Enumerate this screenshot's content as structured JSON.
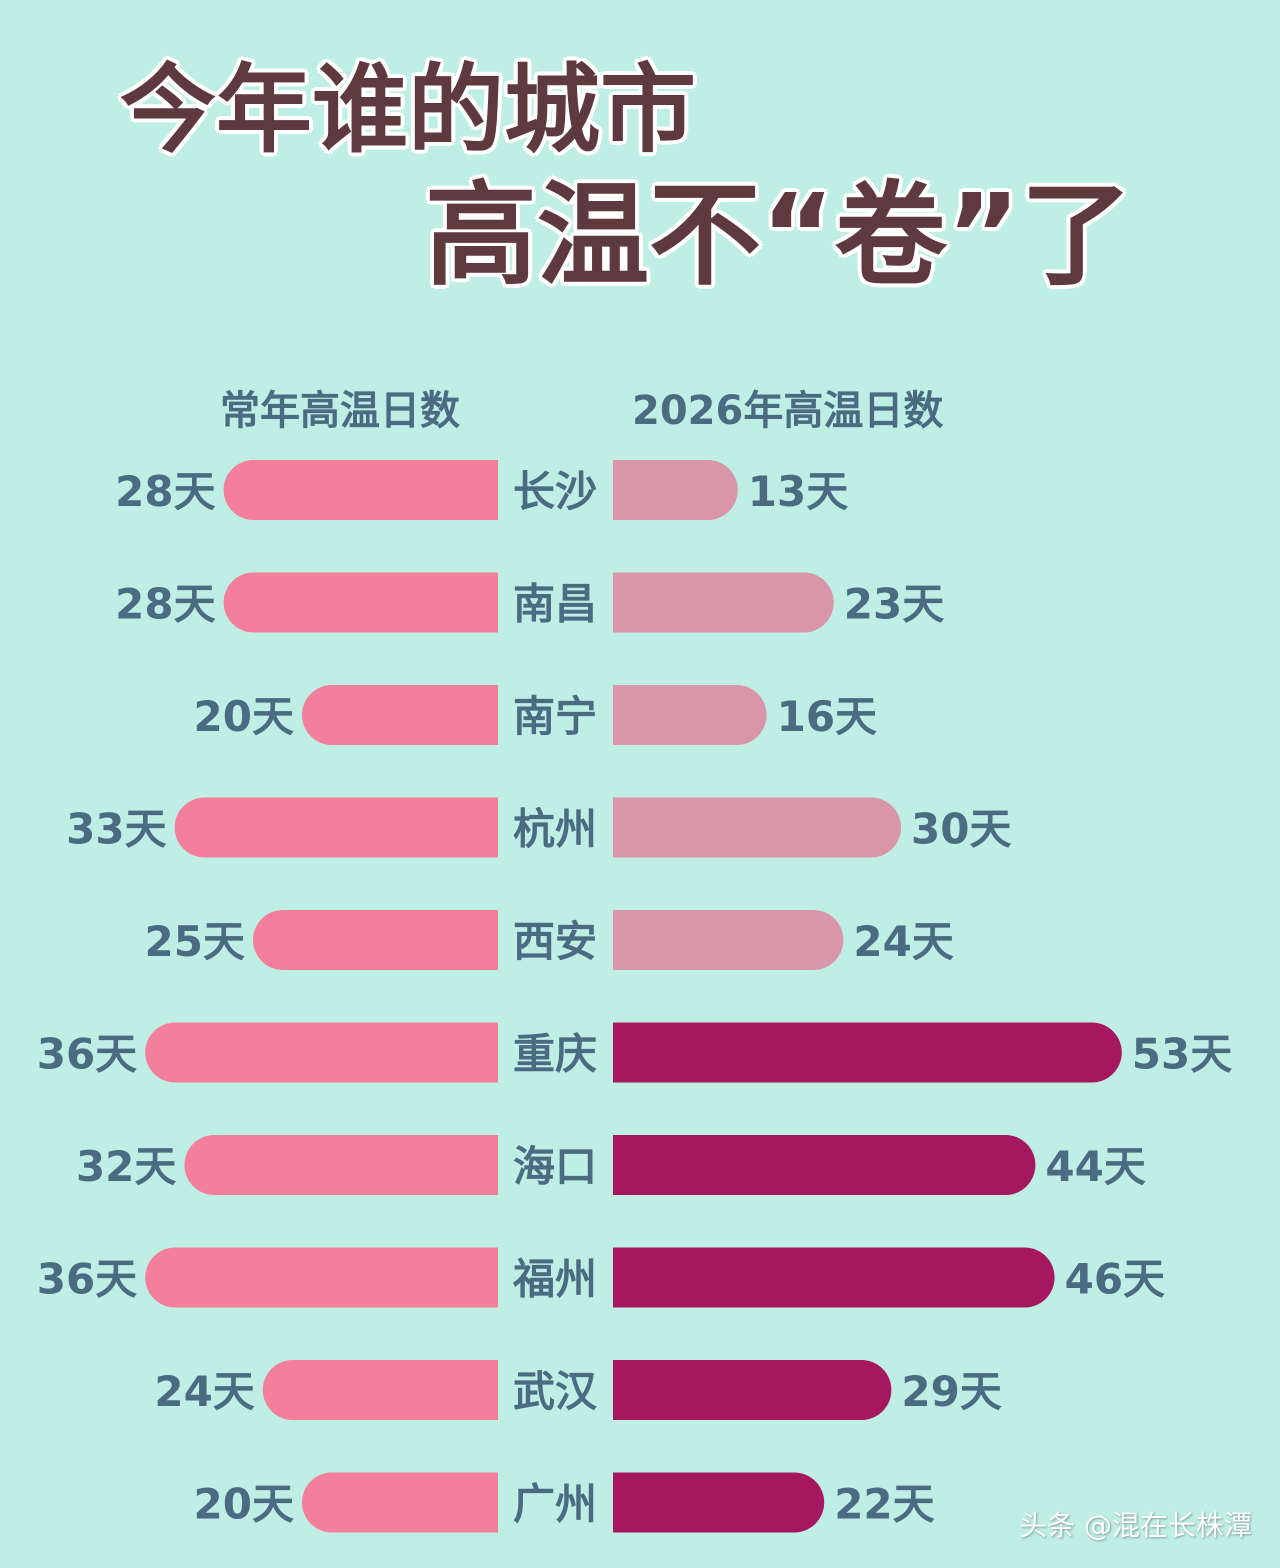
{
  "title": {
    "line1": "今年谁的城市",
    "line2": "高温不“卷”了"
  },
  "headers": {
    "left": "常年高温日数",
    "right": "2026年高温日数"
  },
  "watermark": "头条 @混在长株潭",
  "colors": {
    "background": "#bfeee5",
    "left_bar": "#f47f9a",
    "right_bar_lower": "#d896a8",
    "right_bar_higher": "#a5185f",
    "label_text": "#4a6b82",
    "title_text": "#5e3a3f"
  },
  "chart_data": {
    "type": "bar",
    "orientation": "horizontal-butterfly",
    "unit": "天",
    "categories": [
      "长沙",
      "南昌",
      "南宁",
      "杭州",
      "西安",
      "重庆",
      "海口",
      "福州",
      "武汉",
      "广州"
    ],
    "series": [
      {
        "name": "常年高温日数",
        "values": [
          28,
          28,
          20,
          33,
          25,
          36,
          32,
          36,
          24,
          20
        ],
        "labels": [
          "28天",
          "28天",
          "20天",
          "33天",
          "25天",
          "36天",
          "32天",
          "36天",
          "24天",
          "20天"
        ]
      },
      {
        "name": "2026年高温日数",
        "values": [
          13,
          23,
          16,
          30,
          24,
          53,
          44,
          46,
          29,
          22
        ],
        "labels": [
          "13天",
          "23天",
          "16天",
          "30天",
          "24天",
          "53天",
          "44天",
          "46天",
          "29天",
          "22天"
        ]
      }
    ]
  }
}
